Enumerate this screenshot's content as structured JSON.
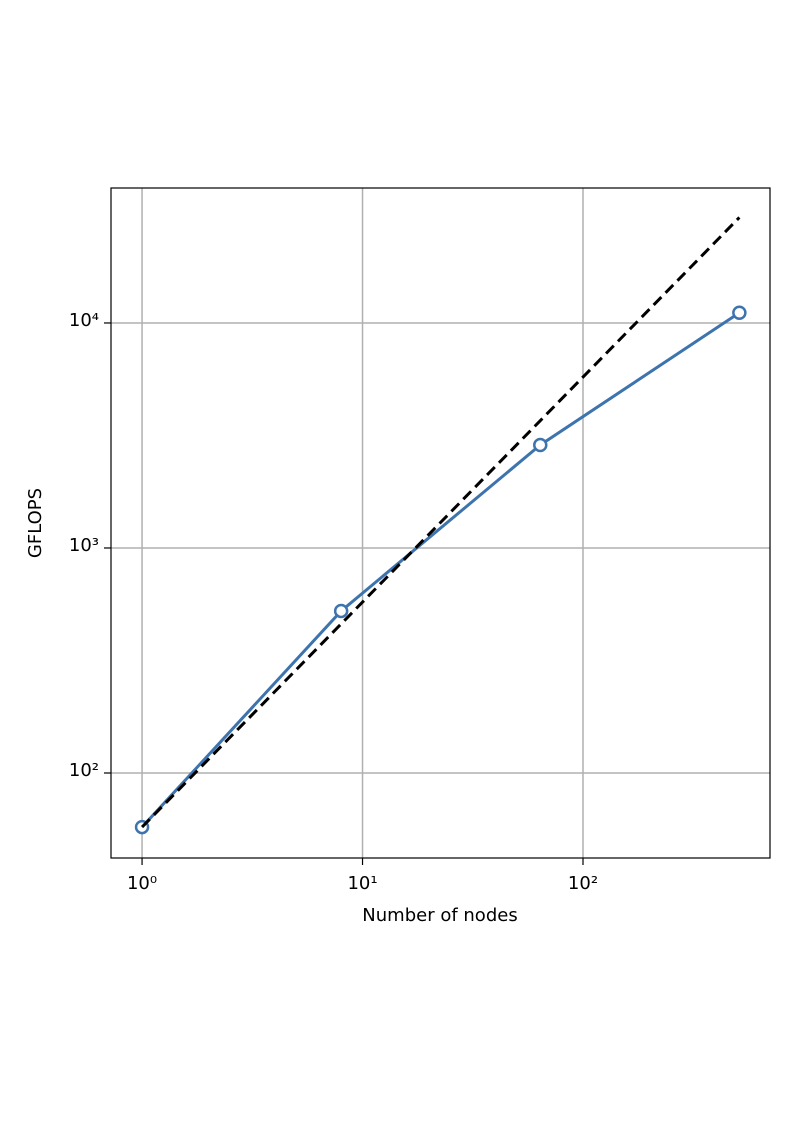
{
  "chart_data": {
    "type": "line",
    "xlabel": "Number of nodes",
    "ylabel": "GFLOPS",
    "xscale": "log",
    "yscale": "log",
    "grid": true,
    "x": [
      1,
      8,
      64,
      512
    ],
    "series": [
      {
        "color": "#3e74ae",
        "style": "solid",
        "marker": "circle",
        "values": [
          57.5,
          525,
          2870,
          11100
        ]
      },
      {
        "color": "#000000",
        "style": "dashed",
        "values": [
          57.5,
          460,
          3680,
          29440
        ]
      }
    ],
    "xlim": [
      0.723,
      705
    ],
    "ylim": [
      41.9,
      39800
    ],
    "xticks": [
      {
        "value": 1,
        "label": "10⁰"
      },
      {
        "value": 10,
        "label": "10¹"
      },
      {
        "value": 100,
        "label": "10²"
      }
    ],
    "yticks": [
      {
        "value": 100,
        "label": "10²"
      },
      {
        "value": 1000,
        "label": "10³"
      },
      {
        "value": 10000,
        "label": "10⁴"
      }
    ]
  }
}
